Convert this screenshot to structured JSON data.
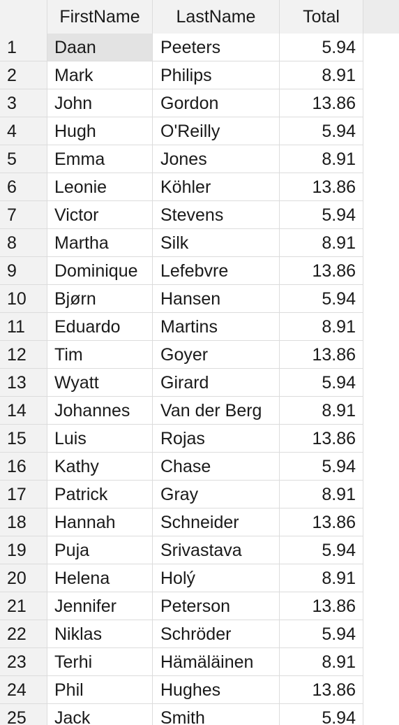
{
  "columns": {
    "first_name": "FirstName",
    "last_name": "LastName",
    "total": "Total"
  },
  "selected_cell": {
    "row": 0,
    "column": "first_name"
  },
  "rows": [
    {
      "num": "1",
      "first": "Daan",
      "last": "Peeters",
      "total": "5.94"
    },
    {
      "num": "2",
      "first": "Mark",
      "last": "Philips",
      "total": "8.91"
    },
    {
      "num": "3",
      "first": "John",
      "last": "Gordon",
      "total": "13.86"
    },
    {
      "num": "4",
      "first": "Hugh",
      "last": "O'Reilly",
      "total": "5.94"
    },
    {
      "num": "5",
      "first": "Emma",
      "last": "Jones",
      "total": "8.91"
    },
    {
      "num": "6",
      "first": "Leonie",
      "last": "Köhler",
      "total": "13.86"
    },
    {
      "num": "7",
      "first": "Victor",
      "last": "Stevens",
      "total": "5.94"
    },
    {
      "num": "8",
      "first": "Martha",
      "last": "Silk",
      "total": "8.91"
    },
    {
      "num": "9",
      "first": "Dominique",
      "last": "Lefebvre",
      "total": "13.86"
    },
    {
      "num": "10",
      "first": "Bjørn",
      "last": "Hansen",
      "total": "5.94"
    },
    {
      "num": "11",
      "first": "Eduardo",
      "last": "Martins",
      "total": "8.91"
    },
    {
      "num": "12",
      "first": "Tim",
      "last": "Goyer",
      "total": "13.86"
    },
    {
      "num": "13",
      "first": "Wyatt",
      "last": "Girard",
      "total": "5.94"
    },
    {
      "num": "14",
      "first": "Johannes",
      "last": "Van der Berg",
      "total": "8.91"
    },
    {
      "num": "15",
      "first": "Luis",
      "last": "Rojas",
      "total": "13.86"
    },
    {
      "num": "16",
      "first": "Kathy",
      "last": "Chase",
      "total": "5.94"
    },
    {
      "num": "17",
      "first": "Patrick",
      "last": "Gray",
      "total": "8.91"
    },
    {
      "num": "18",
      "first": "Hannah",
      "last": "Schneider",
      "total": "13.86"
    },
    {
      "num": "19",
      "first": "Puja",
      "last": "Srivastava",
      "total": "5.94"
    },
    {
      "num": "20",
      "first": "Helena",
      "last": "Holý",
      "total": "8.91"
    },
    {
      "num": "21",
      "first": "Jennifer",
      "last": "Peterson",
      "total": "13.86"
    },
    {
      "num": "22",
      "first": "Niklas",
      "last": "Schröder",
      "total": "5.94"
    },
    {
      "num": "23",
      "first": "Terhi",
      "last": "Hämäläinen",
      "total": "8.91"
    },
    {
      "num": "24",
      "first": "Phil",
      "last": "Hughes",
      "total": "13.86"
    },
    {
      "num": "25",
      "first": "Jack",
      "last": "Smith",
      "total": "5.94"
    }
  ]
}
